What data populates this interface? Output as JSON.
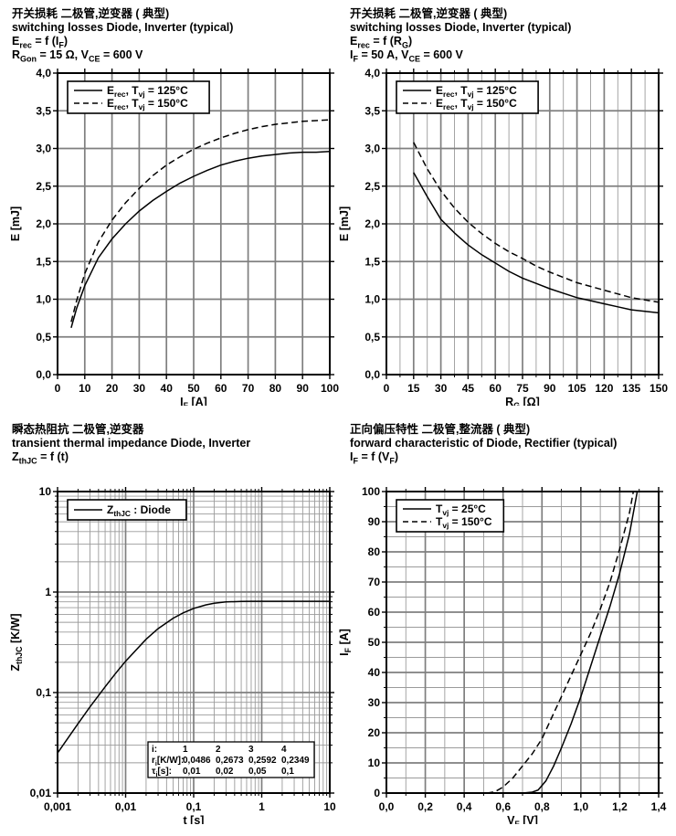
{
  "page": {
    "background": "#ffffff",
    "ink": "#000000",
    "grid_major": "#7f7f7f",
    "grid_minor": "#9b9b9b"
  },
  "chart_data": [
    {
      "id": "erec-vs-if",
      "type": "line",
      "header": {
        "zh": "开关损耗 二极管,逆变器 ( 典型)",
        "en": "switching losses Diode, Inverter (typical)",
        "f1": "E~rec~ = f (I~F~)",
        "f2": "R~Gon~ = 15 Ω, V~CE~ = 600 V"
      },
      "xlabel": "I~F~ [A]",
      "ylabel": "E [mJ]",
      "xscale": "linear",
      "yscale": "linear",
      "xlim": [
        0,
        100
      ],
      "ylim": [
        0,
        4
      ],
      "x_minor": null,
      "y_minor": null,
      "x_ticks": {
        "values": [
          0,
          10,
          20,
          30,
          40,
          50,
          60,
          70,
          80,
          90,
          100
        ],
        "labels": [
          "0",
          "10",
          "20",
          "30",
          "40",
          "50",
          "60",
          "70",
          "80",
          "90",
          "100"
        ]
      },
      "y_ticks": {
        "values": [
          0,
          0.5,
          1,
          1.5,
          2,
          2.5,
          3,
          3.5,
          4
        ],
        "labels": [
          "0,0",
          "0,5",
          "1,0",
          "1,5",
          "2,0",
          "2,5",
          "3,0",
          "3,5",
          "4,0"
        ]
      },
      "legend_pos": "top-left",
      "legend": [
        {
          "label": "E~rec~, T~vj~ = 125°C",
          "dash": false
        },
        {
          "label": "E~rec~, T~vj~ = 150°C",
          "dash": true
        }
      ],
      "series": [
        {
          "name": "Erec Tvj=125C",
          "dash": false,
          "points": [
            [
              5,
              0.62
            ],
            [
              7,
              0.88
            ],
            [
              10,
              1.18
            ],
            [
              15,
              1.55
            ],
            [
              20,
              1.8
            ],
            [
              25,
              2.0
            ],
            [
              30,
              2.17
            ],
            [
              35,
              2.31
            ],
            [
              40,
              2.43
            ],
            [
              45,
              2.54
            ],
            [
              50,
              2.63
            ],
            [
              55,
              2.71
            ],
            [
              60,
              2.78
            ],
            [
              65,
              2.83
            ],
            [
              70,
              2.87
            ],
            [
              75,
              2.9
            ],
            [
              80,
              2.92
            ],
            [
              85,
              2.94
            ],
            [
              90,
              2.95
            ],
            [
              95,
              2.95
            ],
            [
              100,
              2.96
            ]
          ]
        },
        {
          "name": "Erec Tvj=150C",
          "dash": true,
          "points": [
            [
              5,
              0.7
            ],
            [
              7,
              0.98
            ],
            [
              10,
              1.34
            ],
            [
              15,
              1.76
            ],
            [
              20,
              2.05
            ],
            [
              25,
              2.28
            ],
            [
              30,
              2.47
            ],
            [
              35,
              2.64
            ],
            [
              40,
              2.78
            ],
            [
              45,
              2.89
            ],
            [
              50,
              2.99
            ],
            [
              55,
              3.07
            ],
            [
              60,
              3.14
            ],
            [
              65,
              3.2
            ],
            [
              70,
              3.25
            ],
            [
              75,
              3.29
            ],
            [
              80,
              3.32
            ],
            [
              85,
              3.34
            ],
            [
              90,
              3.36
            ],
            [
              95,
              3.37
            ],
            [
              100,
              3.38
            ]
          ]
        }
      ]
    },
    {
      "id": "erec-vs-rg",
      "type": "line",
      "header": {
        "zh": "开关损耗 二极管,逆变器 ( 典型)",
        "en": "switching losses Diode, Inverter (typical)",
        "f1": "E~rec~ = f (R~G~)",
        "f2": "I~F~ = 50 A, V~CE~ = 600 V"
      },
      "xlabel": "R~G~ [Ω]",
      "ylabel": "E [mJ]",
      "xscale": "linear",
      "yscale": "linear",
      "xlim": [
        0,
        150
      ],
      "ylim": [
        0,
        4
      ],
      "x_minor": 7.5,
      "y_minor": null,
      "x_ticks": {
        "values": [
          0,
          15,
          30,
          45,
          60,
          75,
          90,
          105,
          120,
          135,
          150
        ],
        "labels": [
          "0",
          "15",
          "30",
          "45",
          "60",
          "75",
          "90",
          "105",
          "120",
          "135",
          "150"
        ]
      },
      "y_ticks": {
        "values": [
          0,
          0.5,
          1,
          1.5,
          2,
          2.5,
          3,
          3.5,
          4
        ],
        "labels": [
          "0,0",
          "0,5",
          "1,0",
          "1,5",
          "2,0",
          "2,5",
          "3,0",
          "3,5",
          "4,0"
        ]
      },
      "legend_pos": "top-left",
      "legend": [
        {
          "label": "E~rec~, T~vj~ = 125°C",
          "dash": false
        },
        {
          "label": "E~rec~, T~vj~ = 150°C",
          "dash": true
        }
      ],
      "series": [
        {
          "name": "Erec Tvj=125C",
          "dash": false,
          "points": [
            [
              15,
              2.68
            ],
            [
              22.5,
              2.36
            ],
            [
              30,
              2.06
            ],
            [
              37.5,
              1.88
            ],
            [
              45,
              1.72
            ],
            [
              52.5,
              1.59
            ],
            [
              60,
              1.48
            ],
            [
              67.5,
              1.37
            ],
            [
              75,
              1.28
            ],
            [
              82.5,
              1.21
            ],
            [
              90,
              1.14
            ],
            [
              97.5,
              1.08
            ],
            [
              105,
              1.02
            ],
            [
              112.5,
              0.98
            ],
            [
              120,
              0.94
            ],
            [
              127.5,
              0.9
            ],
            [
              135,
              0.86
            ],
            [
              142.5,
              0.84
            ],
            [
              150,
              0.82
            ]
          ]
        },
        {
          "name": "Erec Tvj=150C",
          "dash": true,
          "points": [
            [
              15,
              3.08
            ],
            [
              22.5,
              2.73
            ],
            [
              30,
              2.44
            ],
            [
              37.5,
              2.21
            ],
            [
              45,
              2.02
            ],
            [
              52.5,
              1.87
            ],
            [
              60,
              1.74
            ],
            [
              67.5,
              1.63
            ],
            [
              75,
              1.54
            ],
            [
              82.5,
              1.44
            ],
            [
              90,
              1.36
            ],
            [
              97.5,
              1.29
            ],
            [
              105,
              1.22
            ],
            [
              112.5,
              1.17
            ],
            [
              120,
              1.12
            ],
            [
              127.5,
              1.07
            ],
            [
              135,
              1.02
            ],
            [
              142.5,
              0.99
            ],
            [
              150,
              0.96
            ]
          ]
        }
      ]
    },
    {
      "id": "zth-vs-t",
      "type": "line",
      "header": {
        "zh": "瞬态热阻抗 二极管,逆变器",
        "en": "transient thermal impedance Diode, Inverter",
        "f1": "Z~thJC~ = f (t)",
        "f2": ""
      },
      "xlabel": "t [s]",
      "ylabel": "Z~thJC~ [K/W]",
      "xscale": "log",
      "yscale": "log",
      "xlim": [
        0.001,
        10
      ],
      "ylim": [
        0.01,
        10
      ],
      "x_minor": null,
      "y_minor": null,
      "x_ticks": {
        "values": [
          0.001,
          0.01,
          0.1,
          1,
          10
        ],
        "labels": [
          "0,001",
          "0,01",
          "0,1",
          "1",
          "10"
        ]
      },
      "y_ticks": {
        "values": [
          0.01,
          0.1,
          1,
          10
        ],
        "labels": [
          "0,01",
          "0,1",
          "1",
          "10"
        ]
      },
      "legend_pos": "top-left",
      "legend": [
        {
          "label": "Z~thJC~ : Diode",
          "dash": false
        }
      ],
      "series": [
        {
          "name": "ZthJC Diode",
          "dash": false,
          "points": [
            [
              0.001,
              0.025
            ],
            [
              0.002,
              0.049
            ],
            [
              0.003,
              0.072
            ],
            [
              0.005,
              0.114
            ],
            [
              0.007,
              0.153
            ],
            [
              0.01,
              0.205
            ],
            [
              0.02,
              0.339
            ],
            [
              0.03,
              0.432
            ],
            [
              0.05,
              0.55
            ],
            [
              0.07,
              0.621
            ],
            [
              0.1,
              0.687
            ],
            [
              0.15,
              0.745
            ],
            [
              0.2,
              0.773
            ],
            [
              0.3,
              0.798
            ],
            [
              0.5,
              0.808
            ],
            [
              0.7,
              0.81
            ],
            [
              1,
              0.81
            ],
            [
              2,
              0.81
            ],
            [
              3,
              0.81
            ],
            [
              5,
              0.81
            ],
            [
              7,
              0.81
            ],
            [
              10,
              0.81
            ]
          ]
        }
      ],
      "table": {
        "rows": [
          [
            "i:",
            "1",
            "2",
            "3",
            "4"
          ],
          [
            "r~i~[K/W]:",
            "0,0486",
            "0,2673",
            "0,2592",
            "0,2349"
          ],
          [
            "τ~i~[s]:",
            "0,01",
            "0,02",
            "0,05",
            "0,1"
          ]
        ]
      }
    },
    {
      "id": "if-vs-vf",
      "type": "line",
      "header": {
        "zh": "正向偏压特性 二极管,整流器 ( 典型)",
        "en": "forward characteristic of Diode, Rectifier (typical)",
        "f1": "I~F~ = f (V~F~)",
        "f2": ""
      },
      "xlabel": "V~F~ [V]",
      "ylabel": "I~F~ [A]",
      "xscale": "linear",
      "yscale": "linear",
      "xlim": [
        0,
        1.4
      ],
      "ylim": [
        0,
        100
      ],
      "x_minor": 0.1,
      "y_minor": 5,
      "x_ticks": {
        "values": [
          0,
          0.2,
          0.4,
          0.6,
          0.8,
          1.0,
          1.2,
          1.4
        ],
        "labels": [
          "0,0",
          "0,2",
          "0,4",
          "0,6",
          "0,8",
          "1,0",
          "1,2",
          "1,4"
        ]
      },
      "y_ticks": {
        "values": [
          0,
          10,
          20,
          30,
          40,
          50,
          60,
          70,
          80,
          90,
          100
        ],
        "labels": [
          "0",
          "10",
          "20",
          "30",
          "40",
          "50",
          "60",
          "70",
          "80",
          "90",
          "100"
        ]
      },
      "legend_pos": "top-left",
      "legend": [
        {
          "label": "T~vj~ = 25°C",
          "dash": false
        },
        {
          "label": "T~vj~ = 150°C",
          "dash": true
        }
      ],
      "series": [
        {
          "name": "Tvj=25C",
          "dash": false,
          "points": [
            [
              0,
              0
            ],
            [
              0.7,
              0
            ],
            [
              0.75,
              0.3
            ],
            [
              0.78,
              1
            ],
            [
              0.82,
              4
            ],
            [
              0.86,
              9
            ],
            [
              0.9,
              15
            ],
            [
              0.95,
              23
            ],
            [
              1,
              32
            ],
            [
              1.05,
              42
            ],
            [
              1.1,
              52
            ],
            [
              1.15,
              62
            ],
            [
              1.2,
              73
            ],
            [
              1.25,
              86
            ],
            [
              1.29,
              100
            ]
          ]
        },
        {
          "name": "Tvj=150C",
          "dash": true,
          "points": [
            [
              0,
              0
            ],
            [
              0.52,
              0
            ],
            [
              0.56,
              0.5
            ],
            [
              0.6,
              2
            ],
            [
              0.65,
              5
            ],
            [
              0.7,
              9
            ],
            [
              0.75,
              13
            ],
            [
              0.8,
              18
            ],
            [
              0.85,
              25
            ],
            [
              0.9,
              32
            ],
            [
              0.95,
              39
            ],
            [
              1,
              46
            ],
            [
              1.05,
              53
            ],
            [
              1.1,
              61
            ],
            [
              1.15,
              70
            ],
            [
              1.2,
              81
            ],
            [
              1.25,
              93
            ],
            [
              1.27,
              100
            ]
          ]
        }
      ]
    }
  ]
}
